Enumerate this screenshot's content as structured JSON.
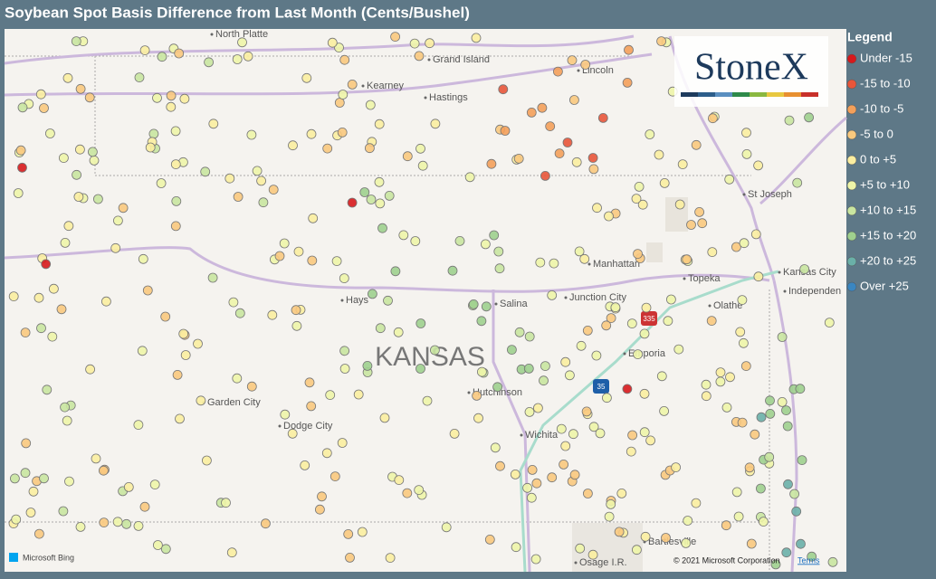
{
  "header": {
    "title": "Soybean Spot Basis Difference from Last Month (Cents/Bushel)"
  },
  "legend": {
    "title": "Legend",
    "items": [
      {
        "label": "Under -15",
        "color": "#d7191c"
      },
      {
        "label": "-15 to -10",
        "color": "#e8553a"
      },
      {
        "label": "-10 to -5",
        "color": "#f4a05a"
      },
      {
        "label": "-5 to 0",
        "color": "#f9c97e"
      },
      {
        "label": "0 to +5",
        "color": "#fbeea0"
      },
      {
        "label": "+5 to +10",
        "color": "#eef5a8"
      },
      {
        "label": "+10 to +15",
        "color": "#c9e6a0"
      },
      {
        "label": "+15 to +20",
        "color": "#9fd08e"
      },
      {
        "label": "+20 to +25",
        "color": "#6ab0a8"
      },
      {
        "label": "Over +25",
        "color": "#3a86c0"
      }
    ]
  },
  "map": {
    "places": [
      "North Platte",
      "Grand Island",
      "Kearney",
      "Hastings",
      "Lincoln",
      "St Joseph",
      "Manhattan",
      "Topeka",
      "Kansas City",
      "Independen",
      "Hays",
      "Salina",
      "Junction City",
      "Olathe",
      "Emporia",
      "Garden City",
      "Dodge City",
      "Hutchinson",
      "Wichita",
      "Bartlesville",
      "Osage I.R."
    ],
    "state_label": "KANSAS",
    "highways": [
      "335",
      "35"
    ],
    "logo": "StoneX",
    "provider": "Microsoft Bing",
    "copyright": "© 2021 Microsoft Corporation",
    "terms": "Terms"
  }
}
